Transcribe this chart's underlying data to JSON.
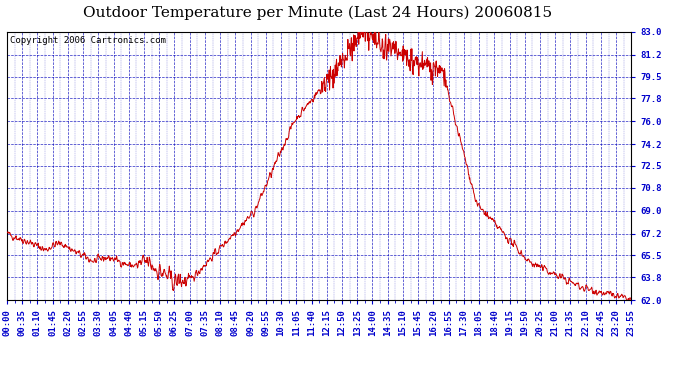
{
  "title": "Outdoor Temperature per Minute (Last 24 Hours) 20060815",
  "copyright": "Copyright 2006 Cartronics.com",
  "background_color": "#ffffff",
  "plot_bg_color": "#ffffff",
  "line_color": "#cc0000",
  "grid_color": "#0000bb",
  "text_color": "#000000",
  "axis_label_color": "#0000cc",
  "yticks": [
    62.0,
    63.8,
    65.5,
    67.2,
    69.0,
    70.8,
    72.5,
    74.2,
    76.0,
    77.8,
    79.5,
    81.2,
    83.0
  ],
  "ymin": 62.0,
  "ymax": 83.0,
  "xtick_interval_minutes": 35,
  "num_points": 1435,
  "title_fontsize": 11,
  "copyright_fontsize": 6.5,
  "tick_fontsize": 6.5
}
